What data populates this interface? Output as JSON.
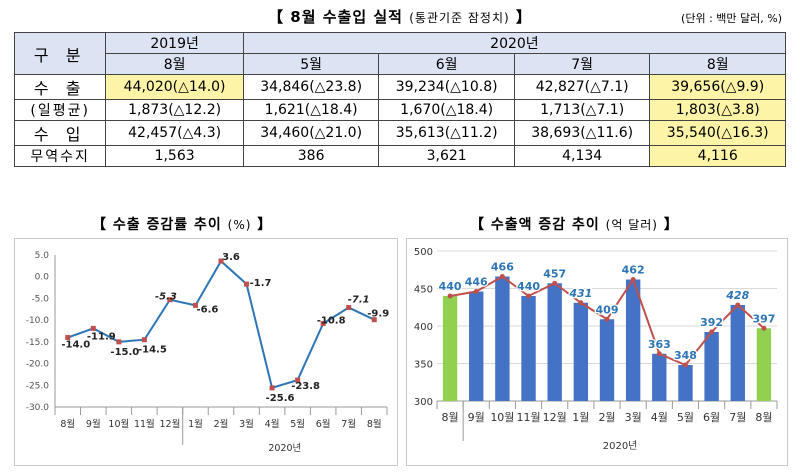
{
  "title": {
    "main": "【 8월 수출입 실적",
    "sub": "(통관기준 잠정치)",
    "end": " 】"
  },
  "unit": "(단위 : 백만 달러, %)",
  "table": {
    "corner": "구 분",
    "year_2019": "2019년",
    "year_2020": "2020년",
    "months": [
      "8월",
      "5월",
      "6월",
      "7월",
      "8월"
    ],
    "rows": [
      {
        "label": "수 출",
        "cells": [
          "44,020(△14.0)",
          "34,846(△23.8)",
          "39,234(△10.8)",
          "42,827(△7.1)",
          "39,656(△9.9)"
        ]
      },
      {
        "label": "(일평균)",
        "cells": [
          "1,873(△12.2)",
          "1,621(△18.4)",
          "1,670(△18.4)",
          "1,713(△7.1)",
          "1,803(△3.8)"
        ]
      },
      {
        "label": "수 입",
        "cells": [
          "42,457(△4.3)",
          "34,460(△21.0)",
          "35,613(△11.2)",
          "38,693(△11.6)",
          "35,540(△16.3)"
        ]
      },
      {
        "label": "무역수지",
        "cells": [
          "1,563",
          "386",
          "3,621",
          "4,134",
          "4,116"
        ]
      }
    ],
    "highlight_color": "#fdf4a8",
    "header_color": "#dce3f2"
  },
  "chart_titles": {
    "left": {
      "main": "【 수출 증감률 추이",
      "sub": "(%)",
      "end": " 】"
    },
    "right": {
      "main": "【 수출액 증감 추이",
      "sub": "(억 달러)",
      "end": " 】"
    }
  },
  "chart_data": [
    {
      "type": "line",
      "categories": [
        "8월",
        "9월",
        "10월",
        "11월",
        "12월",
        "1월",
        "2월",
        "3월",
        "4월",
        "5월",
        "6월",
        "7월",
        "8월"
      ],
      "xlabel": "2020년",
      "values": [
        -14.0,
        -11.9,
        -15.0,
        -14.5,
        -5.3,
        -6.6,
        3.6,
        -1.7,
        -25.6,
        -23.8,
        -10.8,
        -7.1,
        -9.9
      ],
      "data_labels": [
        "-14.0",
        "-11.9",
        "-15.0",
        "-14.5",
        "-5.3",
        "-6.6",
        "3.6",
        "-1.7",
        "-25.6",
        "-23.8",
        "-10.8",
        "-7.1",
        "-9.9"
      ],
      "italic_labels": [
        4,
        11
      ],
      "ylim": [
        -30,
        5
      ],
      "yticks": [
        "5.0",
        "0.0",
        "-5.0",
        "-10.0",
        "-15.0",
        "-20.0",
        "-25.0",
        "-30.0"
      ],
      "line_color": "#2e75b6",
      "marker_color": "#c0504d"
    },
    {
      "type": "bar",
      "categories": [
        "8월",
        "9월",
        "10월",
        "11월",
        "12월",
        "1월",
        "2월",
        "3월",
        "4월",
        "5월",
        "6월",
        "7월",
        "8월"
      ],
      "xlabel": "2020년",
      "values": [
        440,
        446,
        466,
        440,
        457,
        431,
        409,
        462,
        363,
        348,
        392,
        428,
        397
      ],
      "data_labels": [
        "440",
        "446",
        "466",
        "440",
        "457",
        "431",
        "409",
        "462",
        "363",
        "348",
        "392",
        "428",
        "397"
      ],
      "italic_labels": [
        5,
        11
      ],
      "ylim": [
        300,
        500
      ],
      "yticks": [
        "500",
        "450",
        "400",
        "350",
        "300"
      ],
      "bar_color": "#4472c4",
      "highlight_bar_color": "#92d050",
      "highlight_bars": [
        0,
        12
      ],
      "line_color": "#c0504d",
      "label_color": "#2e75b6"
    }
  ]
}
